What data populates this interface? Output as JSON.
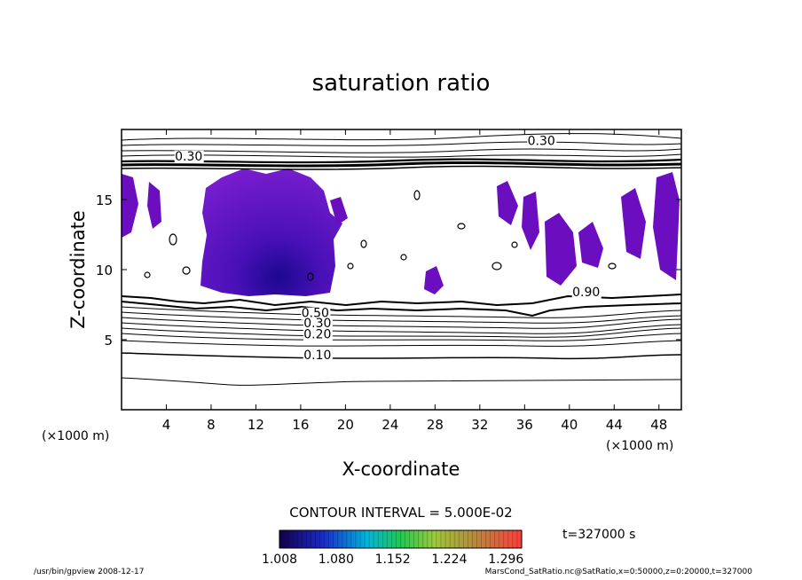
{
  "chart_data": {
    "type": "contour",
    "title": "saturation ratio",
    "xlabel": "X-coordinate",
    "ylabel": "Z-coordinate",
    "x_unit": "(×1000 m)",
    "y_unit": "(×1000 m)",
    "xlim": [
      0,
      50
    ],
    "ylim": [
      0,
      20
    ],
    "x_ticks": [
      4,
      8,
      12,
      16,
      20,
      24,
      28,
      32,
      36,
      40,
      44,
      48
    ],
    "y_ticks": [
      5,
      10,
      15
    ],
    "contour_interval": "CONTOUR INTERVAL = 5.000E-02",
    "time": "t=327000 s",
    "contour_labels": [
      {
        "text": "0.30",
        "x": 37.5,
        "y": 18.9
      },
      {
        "text": "0.30",
        "x": 6.0,
        "y": 17.8
      },
      {
        "text": "0.90",
        "x": 41.5,
        "y": 8.1
      },
      {
        "text": "0.50",
        "x": 17.3,
        "y": 6.6
      },
      {
        "text": "0.30",
        "x": 17.5,
        "y": 5.9
      },
      {
        "text": "0.20",
        "x": 17.5,
        "y": 5.1
      },
      {
        "text": "0.10",
        "x": 17.5,
        "y": 3.6
      }
    ],
    "shaded_range": [
      1.008,
      1.296
    ],
    "colorbar_ticks": [
      "1.008",
      "1.080",
      "1.152",
      "1.224",
      "1.296"
    ],
    "colors": {
      "shade_main": "#6a0ec0",
      "shade_light": "#8a2ad8",
      "shade_deep": "#20088a",
      "colorbar_low": "#000070",
      "colorbar_high": "#ff3c3c"
    }
  },
  "footer": {
    "left": "/usr/bin/gpview   2008-12-17",
    "right": "MarsCond_SatRatio.nc@SatRatio,x=0:50000,z=0:20000,t=327000"
  }
}
